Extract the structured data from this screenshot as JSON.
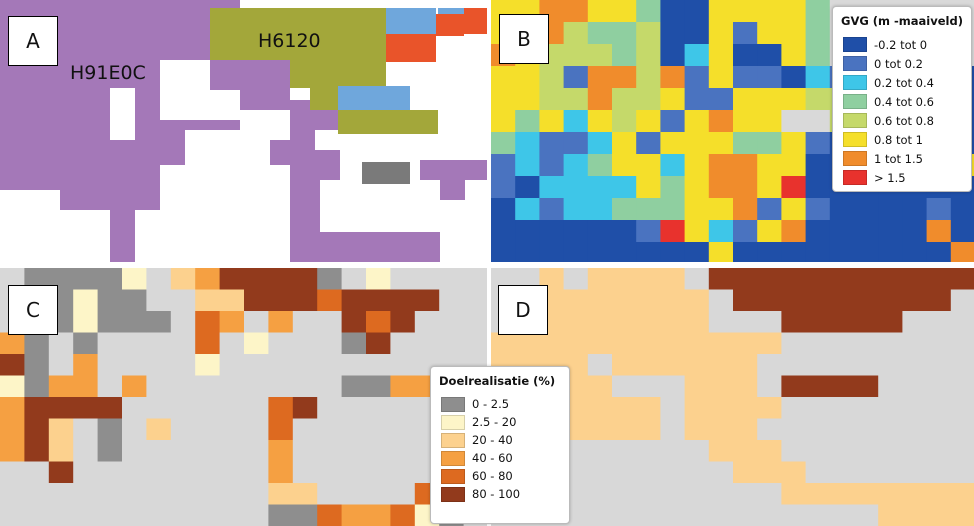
{
  "panels": {
    "a": {
      "label": "A",
      "habitat_labels": [
        "H91E0C",
        "H6120"
      ]
    },
    "b": {
      "label": "B"
    },
    "c": {
      "label": "C"
    },
    "d": {
      "label": "D"
    }
  },
  "legend_gvg": {
    "title": "GVG (m -maaiveld)",
    "items": [
      {
        "label": "-0.2 tot 0",
        "color": "#1f4fa8"
      },
      {
        "label": "0 tot 0.2",
        "color": "#4a73c0"
      },
      {
        "label": "0.2 tot 0.4",
        "color": "#3ec6e8"
      },
      {
        "label": "0.4 tot 0.6",
        "color": "#8fcfa0"
      },
      {
        "label": "0.6 tot 0.8",
        "color": "#c5d96a"
      },
      {
        "label": "0.8 tot 1",
        "color": "#f5df2a"
      },
      {
        "label": "1 tot 1.5",
        "color": "#f08c2c"
      },
      {
        "label": "> 1.5",
        "color": "#e8322d"
      }
    ]
  },
  "legend_doel": {
    "title": "Doelrealisatie (%)",
    "items": [
      {
        "label": "0 - 2.5",
        "color": "#8e8e8e"
      },
      {
        "label": "2.5 - 20",
        "color": "#fdf5c8"
      },
      {
        "label": "20 - 40",
        "color": "#fcd18e"
      },
      {
        "label": "40 - 60",
        "color": "#f5a042"
      },
      {
        "label": "60 - 80",
        "color": "#dd6a20"
      },
      {
        "label": "80 - 100",
        "color": "#923a1c"
      }
    ]
  },
  "colors": {
    "habitat_h91e0c": "#a478b8",
    "habitat_h6120": "#a3a73a",
    "map_background": "#d8d8d8",
    "blue_patch": "#6fa7dc",
    "red_patch": "#e9542a",
    "gray_patch": "#7a7a7a"
  }
}
